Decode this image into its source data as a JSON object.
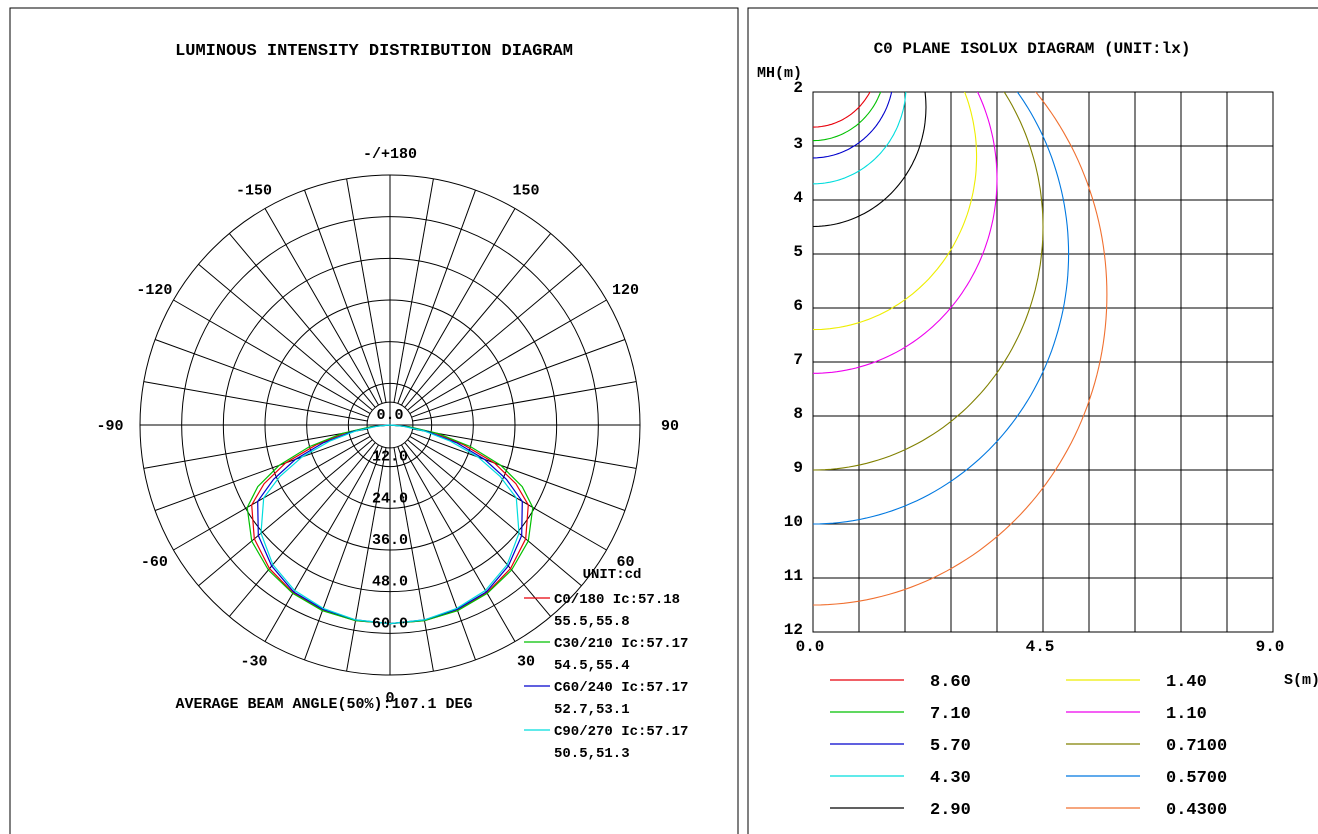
{
  "chart_data": [
    {
      "type": "polar",
      "title": "LUMINOUS INTENSITY DISTRIBUTION DIAGRAM",
      "angle_labels": [
        {
          "angle": 180,
          "text": "-/+180"
        },
        {
          "angle": 150,
          "text": "150"
        },
        {
          "angle": -150,
          "text": "-150"
        },
        {
          "angle": 120,
          "text": "120"
        },
        {
          "angle": -120,
          "text": "-120"
        },
        {
          "angle": 90,
          "text": "90"
        },
        {
          "angle": -90,
          "text": "-90"
        },
        {
          "angle": 60,
          "text": "60"
        },
        {
          "angle": -60,
          "text": "-60"
        },
        {
          "angle": 30,
          "text": "30"
        },
        {
          "angle": -30,
          "text": "-30"
        },
        {
          "angle": 0,
          "text": "0"
        }
      ],
      "radial_ticks": [
        0,
        12,
        24,
        36,
        48,
        60
      ],
      "radial_tick_labels": [
        "0.0",
        "12.0",
        "24.0",
        "36.0",
        "48.0",
        "60.0"
      ],
      "rmax": 72,
      "unit_label": "UNIT:cd",
      "beam_angle_text": "AVERAGE BEAM ANGLE(50%):107.1 DEG",
      "series": [
        {
          "name": "C0/180 Ic:57.18",
          "beam": "55.5,55.8",
          "color": "#e8000b",
          "angles": [
            0,
            10,
            20,
            30,
            40,
            50,
            60,
            65,
            70,
            75,
            80,
            85,
            90
          ],
          "values": [
            57.2,
            57.2,
            56.8,
            55.8,
            54,
            51,
            46,
            40,
            32,
            22,
            13,
            5,
            0
          ]
        },
        {
          "name": "C30/210 Ic:57.17",
          "beam": "54.5,55.4",
          "color": "#00c000",
          "angles": [
            0,
            10,
            20,
            30,
            40,
            50,
            60,
            65,
            70,
            75,
            80,
            85,
            90
          ],
          "values": [
            57.2,
            57.2,
            56.9,
            56,
            54.5,
            52,
            47.5,
            42,
            34,
            24,
            14,
            5.5,
            0
          ]
        },
        {
          "name": "C60/240 Ic:57.17",
          "beam": "52.7,53.1",
          "color": "#0000cc",
          "angles": [
            0,
            10,
            20,
            30,
            40,
            50,
            60,
            65,
            70,
            75,
            80,
            85,
            90
          ],
          "values": [
            57.2,
            57,
            56.5,
            55.5,
            53,
            49.5,
            44,
            37,
            29,
            20,
            11,
            4,
            0
          ]
        },
        {
          "name": "C90/270 Ic:57.17",
          "beam": "50.5,51.3",
          "color": "#00dddd",
          "angles": [
            0,
            10,
            20,
            30,
            40,
            50,
            60,
            65,
            70,
            75,
            80,
            85,
            90
          ],
          "values": [
            57.2,
            57,
            56.2,
            55,
            52.5,
            48.5,
            42,
            35,
            27,
            18,
            10,
            3.5,
            0
          ]
        }
      ]
    },
    {
      "type": "line",
      "title": "C0 PLANE ISOLUX DIAGRAM (UNIT:lx)",
      "xlabel": "S(m)",
      "ylabel": "MH(m)",
      "xlim": [
        0,
        9
      ],
      "ylim": [
        2,
        12
      ],
      "x_tick_labels": [
        {
          "value": 0,
          "text": "0.0"
        },
        {
          "value": 4.5,
          "text": "4.5"
        },
        {
          "value": 9,
          "text": "9.0"
        }
      ],
      "y_tick_labels": [
        {
          "value": 2,
          "text": "2"
        },
        {
          "value": 3,
          "text": "3"
        },
        {
          "value": 4,
          "text": "4"
        },
        {
          "value": 5,
          "text": "5"
        },
        {
          "value": 6,
          "text": "6"
        },
        {
          "value": 7,
          "text": "7"
        },
        {
          "value": 8,
          "text": "8"
        },
        {
          "value": 9,
          "text": "9"
        },
        {
          "value": 10,
          "text": "10"
        },
        {
          "value": 11,
          "text": "11"
        },
        {
          "value": 12,
          "text": "12"
        }
      ],
      "series": [
        {
          "name": "8.60",
          "color": "#e8000b",
          "center_h": 1.37,
          "radius": 1.28
        },
        {
          "name": "7.10",
          "color": "#00c000",
          "center_h": 1.48,
          "radius": 1.42
        },
        {
          "name": "5.70",
          "color": "#0000cc",
          "center_h": 1.64,
          "radius": 1.58
        },
        {
          "name": "4.30",
          "color": "#00dddd",
          "center_h": 1.88,
          "radius": 1.82
        },
        {
          "name": "2.90",
          "color": "#000000",
          "center_h": 2.28,
          "radius": 2.21
        },
        {
          "name": "1.40",
          "color": "#eeee00",
          "center_h": 3.2,
          "radius": 3.2
        },
        {
          "name": "1.10",
          "color": "#ee00ee",
          "center_h": 3.61,
          "radius": 3.6
        },
        {
          "name": "0.7100",
          "color": "#808000",
          "center_h": 4.5,
          "radius": 4.5
        },
        {
          "name": "0.5700",
          "color": "#0078e0",
          "center_h": 5.0,
          "radius": 5.0
        },
        {
          "name": "0.4300",
          "color": "#f07030",
          "center_h": 5.75,
          "radius": 5.75
        }
      ]
    }
  ]
}
